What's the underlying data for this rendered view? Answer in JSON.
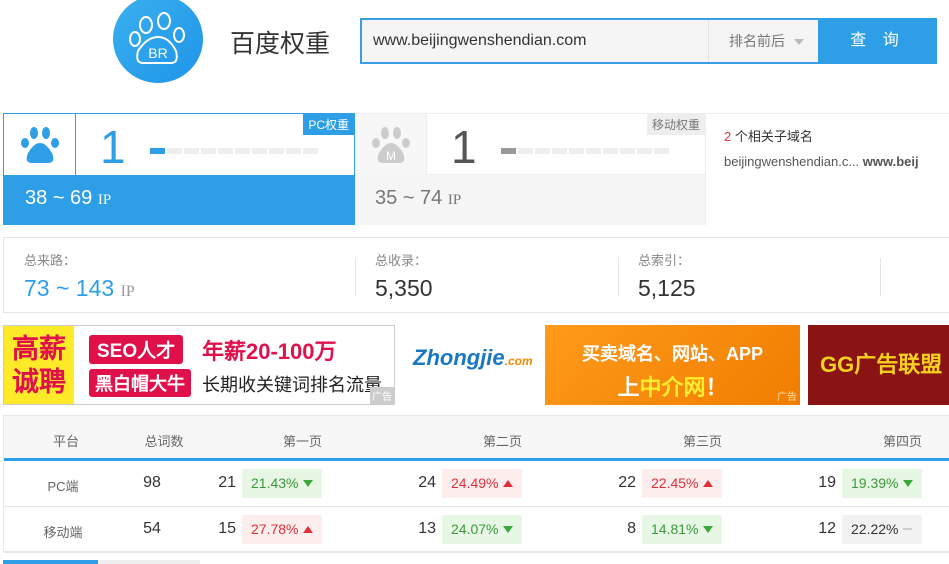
{
  "header": {
    "logo_text": "BR",
    "title": "百度权重",
    "search_value": "www.beijingwenshendian.com",
    "dropdown": "排名前后",
    "query_button": "查 询"
  },
  "pc": {
    "tag": "PC权重",
    "weight": "1",
    "weight_level": 1,
    "weight_max": 10,
    "ip_range": "38 ~ 69",
    "ip_unit": "IP"
  },
  "mobile": {
    "tag": "移动权重",
    "icon_letter": "M",
    "weight": "1",
    "weight_level": 1,
    "weight_max": 10,
    "ip_range": "35 ~ 74",
    "ip_unit": "IP"
  },
  "subdomains": {
    "count": "2",
    "label": "个相关子域名",
    "item1": "beijingwenshendian.c...",
    "item2": "www.beij"
  },
  "stats": {
    "traffic_label": "总来路：",
    "traffic_value": "73 ~ 143",
    "traffic_unit": "IP",
    "indexed_label": "总收录：",
    "indexed_value": "5,350",
    "index_label": "总索引：",
    "index_value": "5,125"
  },
  "ads": {
    "ad1_a": "高薪",
    "ad1_b": "诚聘",
    "ad1_c": "SEO人才",
    "ad1_d": "年薪20-100万",
    "ad1_e": "黑白帽大牛",
    "ad1_f": "长期收关键词排名流量",
    "ad_mark": "广告",
    "ad2_logo": "Zhongjie",
    "ad2_logo_sub": ".com",
    "ad2_a": "买卖域名、网站、APP",
    "ad2_b": "上",
    "ad2_c": "中介网",
    "ad2_d": "！",
    "ad3": "GG广告联盟"
  },
  "colors": {
    "accent": "#2e9fe6",
    "up": "#e0303a",
    "down": "#3aa83a"
  },
  "table": {
    "headers": [
      "平台",
      "总词数",
      "第一页",
      "第二页",
      "第三页",
      "第四页"
    ],
    "rows": [
      {
        "platform": "PC端",
        "total": "98",
        "pages": [
          {
            "n": "21",
            "pct": "21.43%",
            "trend": "down"
          },
          {
            "n": "24",
            "pct": "24.49%",
            "trend": "up"
          },
          {
            "n": "22",
            "pct": "22.45%",
            "trend": "up"
          },
          {
            "n": "19",
            "pct": "19.39%",
            "trend": "down"
          }
        ]
      },
      {
        "platform": "移动端",
        "total": "54",
        "pages": [
          {
            "n": "15",
            "pct": "27.78%",
            "trend": "up"
          },
          {
            "n": "13",
            "pct": "24.07%",
            "trend": "down"
          },
          {
            "n": "8",
            "pct": "14.81%",
            "trend": "down"
          },
          {
            "n": "12",
            "pct": "22.22%",
            "trend": "flat"
          }
        ]
      }
    ]
  }
}
